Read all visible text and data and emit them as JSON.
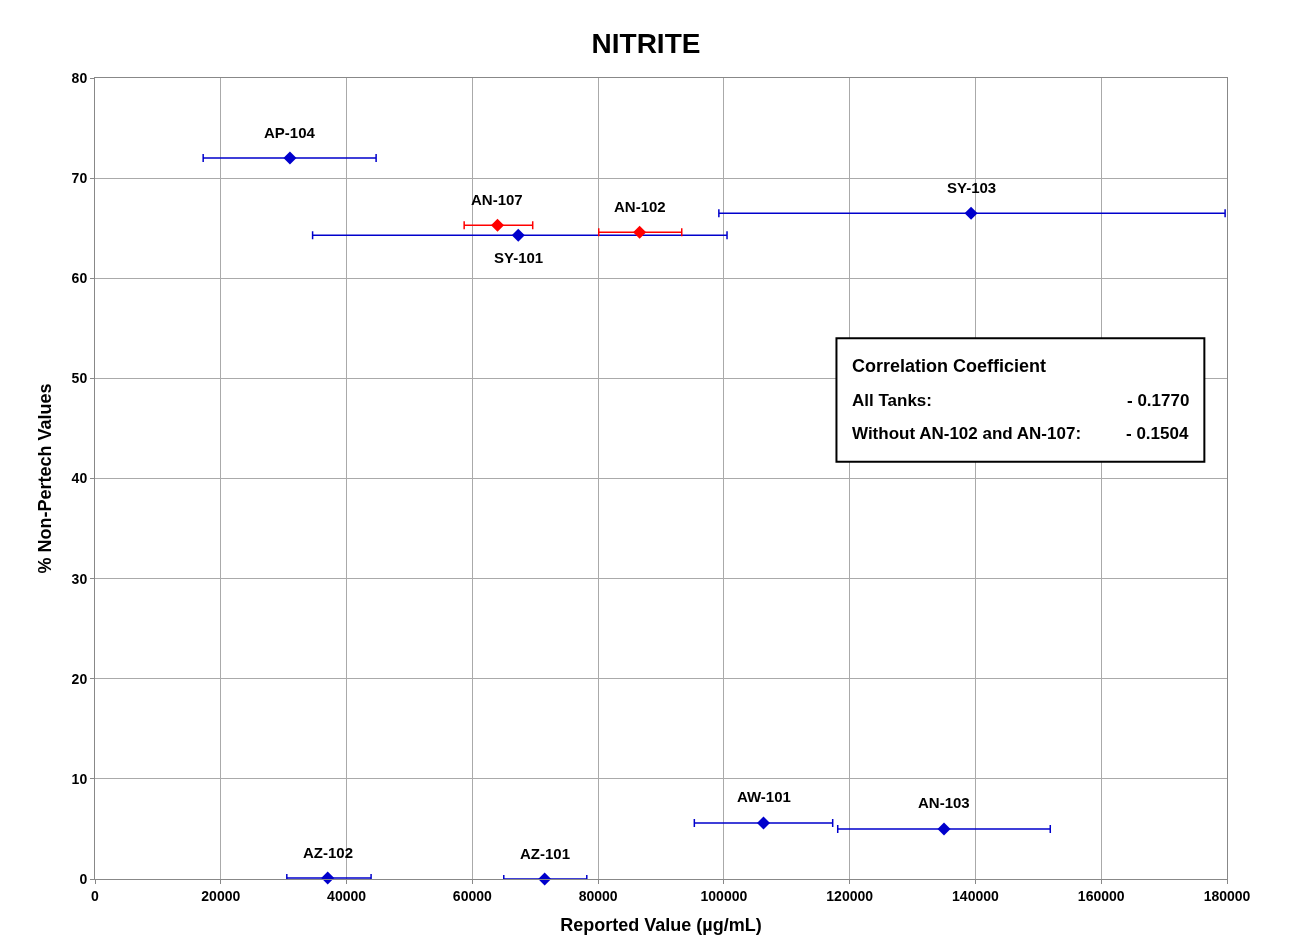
{
  "chart_data": {
    "type": "scatter",
    "title": "NITRITE",
    "xlabel": "Reported Value (µg/mL)",
    "ylabel": "% Non-Pertech Values",
    "marker": "diamond",
    "grid": true,
    "legend": false,
    "xlim": [
      0,
      180000
    ],
    "xticks": [
      0,
      20000,
      40000,
      60000,
      80000,
      100000,
      120000,
      140000,
      160000,
      180000
    ],
    "ylim": [
      0,
      80
    ],
    "yticks": [
      0,
      10,
      20,
      30,
      40,
      50,
      60,
      70,
      80
    ],
    "series": [
      {
        "color": "#0000cc",
        "x": [
          31000,
          67300,
          139300,
          106300,
          135000,
          37000,
          71500
        ],
        "values": [
          72,
          64.3,
          66.5,
          5.6,
          5.0,
          0.1,
          0
        ],
        "xerrors": [
          [
            17200,
            44700
          ],
          [
            34600,
            100500
          ],
          [
            99200,
            179700
          ],
          [
            95300,
            117300
          ],
          [
            118100,
            151900
          ],
          [
            30500,
            43900
          ],
          [
            65000,
            78200
          ]
        ]
      },
      {
        "color": "#ff0000",
        "x": [
          64000,
          86600
        ],
        "values": [
          65.3,
          64.6
        ],
        "xerrors": [
          [
            58700,
            69600
          ],
          [
            80100,
            93300
          ]
        ]
      }
    ],
    "annotations": [
      {
        "text": "AP-104",
        "x": 31000,
        "y": 72
      },
      {
        "text": "SY-101",
        "x": 67300,
        "y": 64.3
      },
      {
        "text": "SY-103",
        "x": 139300,
        "y": 66.5
      },
      {
        "text": "AW-101",
        "x": 106300,
        "y": 5.6
      },
      {
        "text": "AN-103",
        "x": 135000,
        "y": 5.0
      },
      {
        "text": "AZ-102",
        "x": 37000,
        "y": 0.1
      },
      {
        "text": "AZ-101",
        "x": 71500,
        "y": 0
      },
      {
        "text": "AN-107",
        "x": 64000,
        "y": 65.3
      },
      {
        "text": "AN-102",
        "x": 86600,
        "y": 64.6
      },
      "Correlation Coefficient",
      "All Tanks:",
      "- 0.1770",
      "Without AN-102 and AN-107:",
      "- 0.1504"
    ]
  }
}
